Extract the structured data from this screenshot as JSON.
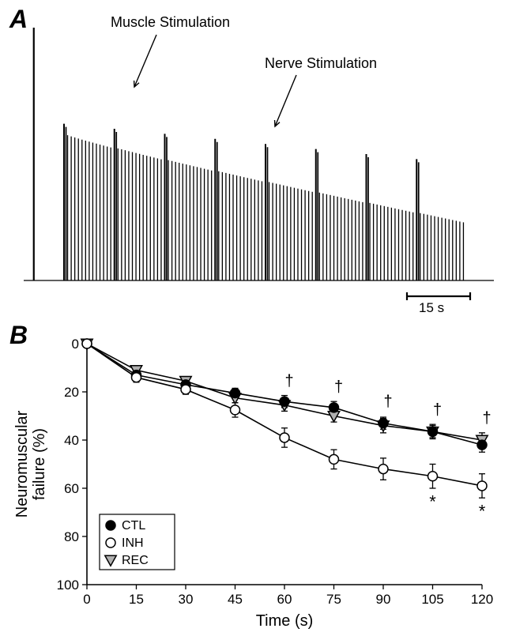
{
  "panelA": {
    "label": "A",
    "annotation_muscle": "Muscle Stimulation",
    "annotation_nerve": "Nerve Stimulation",
    "scalebar_seconds": 15,
    "scalebar_label": "15 s",
    "trace_color": "#000000",
    "background_color": "#ffffff",
    "initial_spike_height": 1.0,
    "muscle_spike_height_start": 0.62,
    "muscle_spike_height_end": 0.48,
    "nerve_spike_height_start": 0.58,
    "nerve_spike_height_end": 0.23,
    "baseline_height": 0.0
  },
  "panelB": {
    "label": "B",
    "type": "line",
    "x_label": "Time (s)",
    "y_label": "Neuromuscular\nfailure (%)",
    "xlim": [
      0,
      120
    ],
    "ylim_display": [
      0,
      100
    ],
    "xtick_step": 15,
    "ytick_step": 20,
    "title_fontsize": 20,
    "tick_fontsize": 17,
    "background_color": "#ffffff",
    "axis_color": "#000000",
    "series": [
      {
        "name": "CTL",
        "marker": "circle",
        "fill": "#000000",
        "stroke": "#000000",
        "line_color": "#000000",
        "x": [
          0,
          15,
          30,
          45,
          60,
          75,
          90,
          105,
          120
        ],
        "y": [
          0,
          13,
          17,
          20.5,
          24,
          26.5,
          33,
          36.5,
          42
        ],
        "err": [
          0,
          2.0,
          1.5,
          2.0,
          2.5,
          2.5,
          2.5,
          2.5,
          3.0
        ]
      },
      {
        "name": "INH",
        "marker": "circle",
        "fill": "#ffffff",
        "stroke": "#000000",
        "line_color": "#000000",
        "x": [
          0,
          15,
          30,
          45,
          60,
          75,
          90,
          105,
          120
        ],
        "y": [
          0,
          14,
          19,
          27.5,
          39,
          48,
          52,
          55,
          59
        ],
        "err": [
          0,
          2.0,
          2.0,
          3.0,
          4.0,
          4.0,
          4.5,
          5.0,
          5.0
        ]
      },
      {
        "name": "REC",
        "marker": "triangle-down",
        "fill": "#b0b0b0",
        "stroke": "#000000",
        "line_color": "#000000",
        "x": [
          0,
          15,
          30,
          45,
          60,
          75,
          90,
          105,
          120
        ],
        "y": [
          0,
          11,
          15.5,
          22.5,
          25.5,
          30,
          34,
          36.5,
          40
        ],
        "err": [
          0,
          1.5,
          1.5,
          2.0,
          2.5,
          2.5,
          3.0,
          3.0,
          3.0
        ]
      }
    ],
    "daggers_x": [
      60,
      75,
      90,
      105,
      120
    ],
    "stars_x": [
      105,
      120
    ],
    "dagger_symbol": "†",
    "star_symbol": "*",
    "symbol_fontsize": 20,
    "legend_items": [
      "CTL",
      "INH",
      "REC"
    ]
  }
}
